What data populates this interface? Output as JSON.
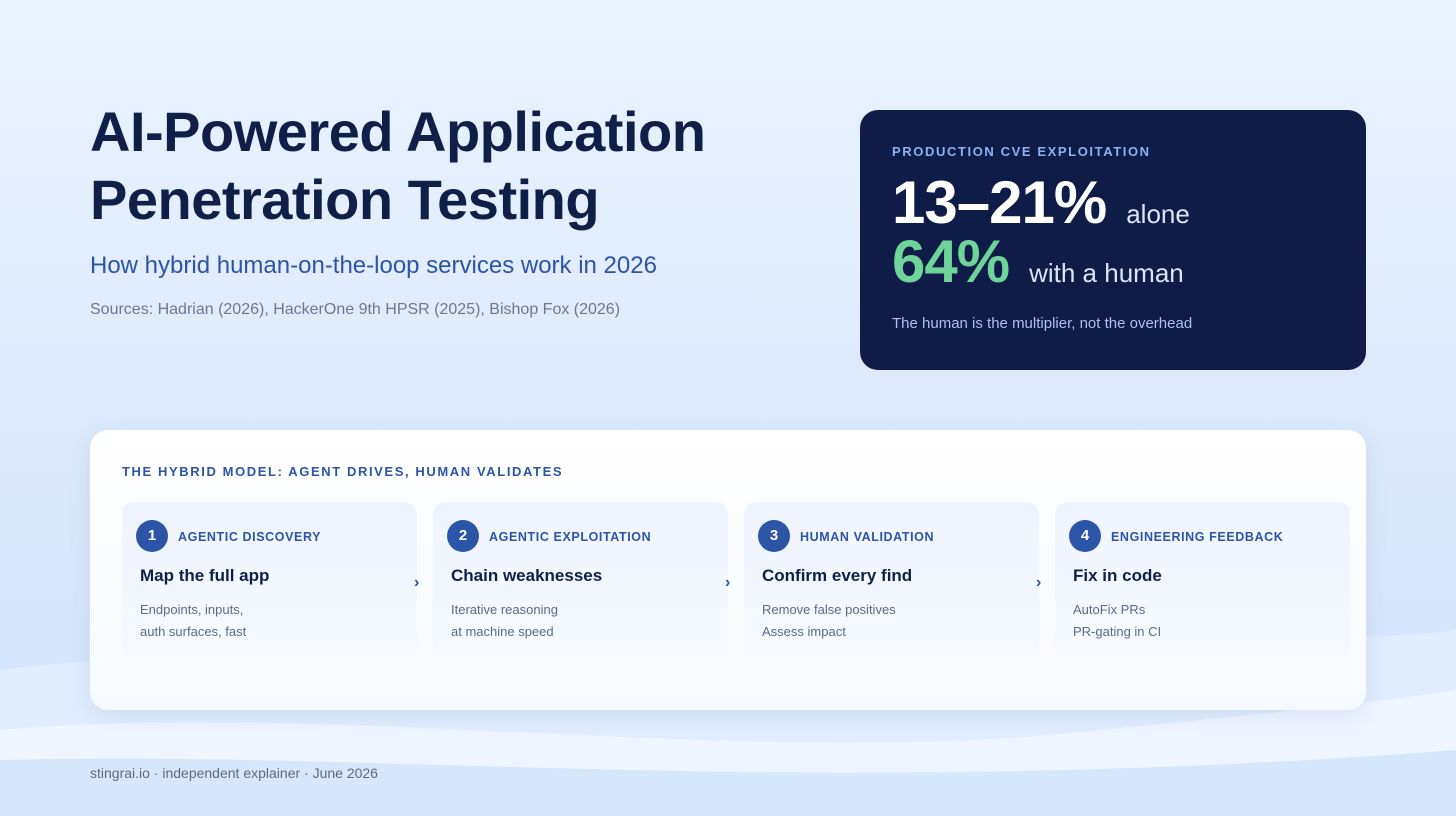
{
  "title_lines": [
    "AI-Powered Application",
    "Penetration Testing"
  ],
  "subtitle": "How hybrid human-on-the-loop services work in 2026",
  "sources": "Sources: Hadrian (2026), HackerOne 9th HPSR (2025), Bishop Fox (2026)",
  "stat_card": {
    "eyebrow": "PRODUCTION CVE EXPLOITATION",
    "row1_value": "13–21%",
    "row1_suffix": "alone",
    "row2_value": "64%",
    "row2_suffix": "with a human",
    "note": "The human is the multiplier, not the overhead"
  },
  "panel": {
    "eyebrow": "THE HYBRID MODEL: AGENT DRIVES, HUMAN VALIDATES",
    "steps": [
      {
        "number": "1",
        "tag": "AGENTIC DISCOVERY",
        "heading": "Map the full app",
        "lines": [
          "Endpoints, inputs,",
          "auth surfaces, fast"
        ]
      },
      {
        "number": "2",
        "tag": "AGENTIC EXPLOITATION",
        "heading": "Chain weaknesses",
        "lines": [
          "Iterative reasoning",
          "at machine speed"
        ]
      },
      {
        "number": "3",
        "tag": "HUMAN VALIDATION",
        "heading": "Confirm every find",
        "lines": [
          "Remove false positives",
          "Assess impact"
        ]
      },
      {
        "number": "4",
        "tag": "ENGINEERING FEEDBACK",
        "heading": "Fix in code",
        "lines": [
          "AutoFix PRs",
          "PR-gating in CI"
        ]
      }
    ],
    "chevron_glyph": "›"
  },
  "footer": "stingrai.io · independent explainer · June 2026",
  "colors": {
    "navy": "#0e1c47",
    "accent_blue": "#2c55a8",
    "accent_green": "#6fd49a"
  }
}
